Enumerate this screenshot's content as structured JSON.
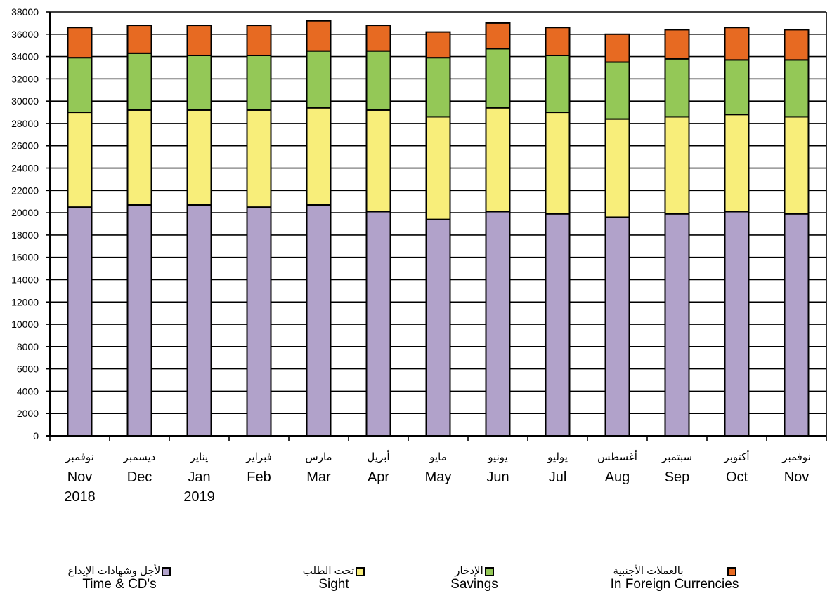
{
  "chart_data": {
    "type": "bar",
    "stacked": true,
    "categories": [
      {
        "ar": "نوفمبر",
        "en": "Nov",
        "year": "2018"
      },
      {
        "ar": "ديسمبر",
        "en": "Dec",
        "year": ""
      },
      {
        "ar": "يناير",
        "en": "Jan",
        "year": "2019"
      },
      {
        "ar": "فبراير",
        "en": "Feb",
        "year": ""
      },
      {
        "ar": "مارس",
        "en": "Mar",
        "year": ""
      },
      {
        "ar": "أبريل",
        "en": "Apr",
        "year": ""
      },
      {
        "ar": "مايو",
        "en": "May",
        "year": ""
      },
      {
        "ar": "يونيو",
        "en": "Jun",
        "year": ""
      },
      {
        "ar": "يوليو",
        "en": "Jul",
        "year": ""
      },
      {
        "ar": "أغسطس",
        "en": "Aug",
        "year": ""
      },
      {
        "ar": "سبتمبر",
        "en": "Sep",
        "year": ""
      },
      {
        "ar": "أكتوبر",
        "en": "Oct",
        "year": ""
      },
      {
        "ar": "نوفمبر",
        "en": "Nov",
        "year": ""
      }
    ],
    "series": [
      {
        "name_ar": "لأجل وشهادات الإيداع",
        "name_en": "Time & CD's",
        "color": "#B1A2CA",
        "values": [
          20500,
          20700,
          20700,
          20500,
          20700,
          20100,
          19400,
          20100,
          19900,
          19600,
          19900,
          20100,
          19900
        ]
      },
      {
        "name_ar": "تحت الطلب",
        "name_en": "Sight",
        "color": "#F8EE7A",
        "values": [
          8500,
          8500,
          8500,
          8700,
          8700,
          9100,
          9200,
          9300,
          9100,
          8800,
          8700,
          8700,
          8700
        ]
      },
      {
        "name_ar": "الإدخار",
        "name_en": "Savings",
        "color": "#94C857",
        "values": [
          4900,
          5100,
          4900,
          4900,
          5100,
          5300,
          5300,
          5300,
          5100,
          5100,
          5200,
          4900,
          5100
        ]
      },
      {
        "name_ar": "بالعملات الأجنبية",
        "name_en": "In Foreign Currencies",
        "color": "#E76A22",
        "values": [
          2700,
          2500,
          2700,
          2700,
          2700,
          2300,
          2300,
          2300,
          2500,
          2500,
          2600,
          2900,
          2700
        ]
      }
    ],
    "ylim": [
      0,
      38000
    ],
    "yticks": [
      0,
      2000,
      4000,
      6000,
      8000,
      10000,
      12000,
      14000,
      16000,
      18000,
      20000,
      22000,
      24000,
      26000,
      28000,
      30000,
      32000,
      34000,
      36000,
      38000
    ],
    "grid": true,
    "legend_position": "bottom"
  }
}
